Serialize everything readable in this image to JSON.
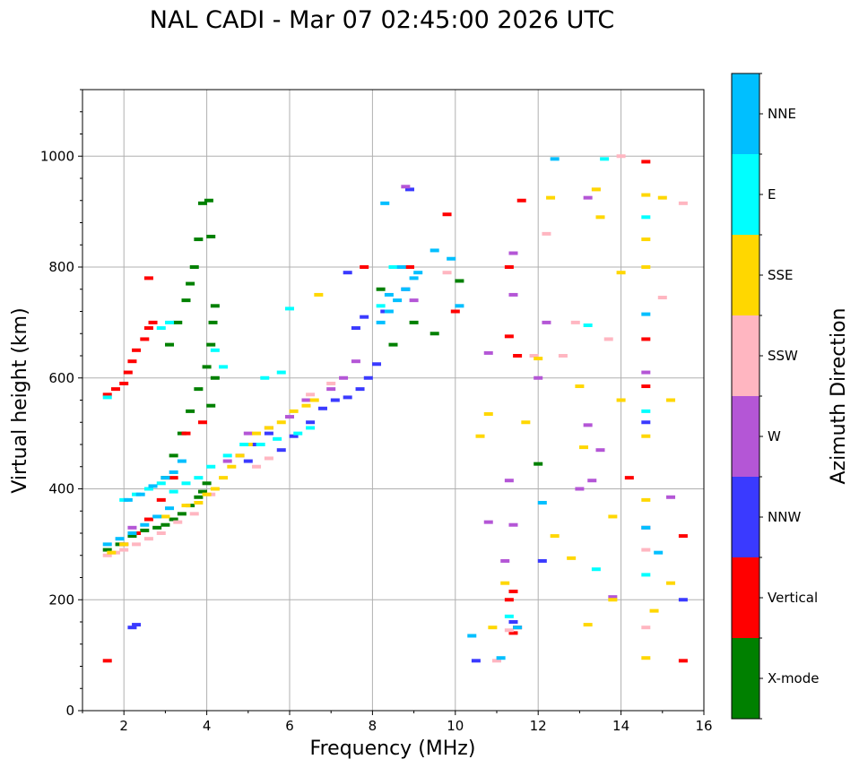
{
  "chart_data": {
    "type": "scatter",
    "title": "NAL CADI - Mar 07 02:45:00 2026 UTC",
    "xlabel": "Frequency (MHz)",
    "ylabel": "Virtual height (km)",
    "xlim": [
      1,
      16
    ],
    "ylim": [
      0,
      1120
    ],
    "x_ticks": [
      2,
      4,
      6,
      8,
      10,
      12,
      14,
      16
    ],
    "y_ticks": [
      0,
      200,
      400,
      600,
      800,
      1000
    ],
    "grid": true,
    "colorbar": {
      "title": "Azimuth Direction",
      "categories": [
        {
          "name": "X-mode",
          "color": "#008000"
        },
        {
          "name": "Vertical",
          "color": "#ff0000"
        },
        {
          "name": "NNW",
          "color": "#3a3aff"
        },
        {
          "name": "W",
          "color": "#b456d6"
        },
        {
          "name": "SSW",
          "color": "#ffb6c1"
        },
        {
          "name": "SSE",
          "color": "#ffd700"
        },
        {
          "name": "E",
          "color": "#00ffff"
        },
        {
          "name": "NNE",
          "color": "#00bfff"
        }
      ]
    },
    "series": [
      {
        "name": "X-mode",
        "points": [
          [
            1.6,
            290
          ],
          [
            1.9,
            300
          ],
          [
            2.2,
            315
          ],
          [
            2.5,
            325
          ],
          [
            2.8,
            330
          ],
          [
            3.0,
            335
          ],
          [
            3.2,
            345
          ],
          [
            3.4,
            355
          ],
          [
            3.6,
            370
          ],
          [
            3.8,
            385
          ],
          [
            3.9,
            395
          ],
          [
            4.0,
            410
          ],
          [
            3.0,
            420
          ],
          [
            3.2,
            460
          ],
          [
            3.4,
            500
          ],
          [
            3.6,
            540
          ],
          [
            3.8,
            580
          ],
          [
            4.0,
            620
          ],
          [
            4.1,
            660
          ],
          [
            4.15,
            700
          ],
          [
            4.2,
            730
          ],
          [
            4.1,
            550
          ],
          [
            4.2,
            600
          ],
          [
            3.1,
            660
          ],
          [
            3.3,
            700
          ],
          [
            3.5,
            740
          ],
          [
            3.6,
            770
          ],
          [
            3.7,
            800
          ],
          [
            3.8,
            850
          ],
          [
            3.9,
            915
          ],
          [
            4.05,
            920
          ],
          [
            4.1,
            855
          ],
          [
            8.5,
            660
          ],
          [
            9.0,
            700
          ],
          [
            9.5,
            680
          ],
          [
            10.1,
            775
          ],
          [
            12.0,
            445
          ],
          [
            8.2,
            760
          ]
        ]
      },
      {
        "name": "Vertical",
        "points": [
          [
            1.6,
            570
          ],
          [
            1.8,
            580
          ],
          [
            2.0,
            590
          ],
          [
            2.1,
            610
          ],
          [
            2.2,
            630
          ],
          [
            2.3,
            650
          ],
          [
            2.5,
            670
          ],
          [
            2.6,
            690
          ],
          [
            2.7,
            700
          ],
          [
            2.6,
            780
          ],
          [
            2.0,
            300
          ],
          [
            2.3,
            320
          ],
          [
            2.6,
            345
          ],
          [
            2.9,
            380
          ],
          [
            3.2,
            420
          ],
          [
            3.5,
            500
          ],
          [
            3.9,
            520
          ],
          [
            1.6,
            90
          ],
          [
            11.4,
            140
          ],
          [
            11.5,
            150
          ],
          [
            11.3,
            200
          ],
          [
            11.4,
            215
          ],
          [
            11.5,
            640
          ],
          [
            11.6,
            920
          ],
          [
            11.3,
            800
          ],
          [
            11.3,
            675
          ],
          [
            9.8,
            895
          ],
          [
            10.0,
            720
          ],
          [
            14.6,
            990
          ],
          [
            14.2,
            420
          ],
          [
            15.5,
            315
          ],
          [
            15.5,
            90
          ],
          [
            14.6,
            585
          ],
          [
            14.6,
            670
          ],
          [
            7.8,
            800
          ],
          [
            8.9,
            800
          ]
        ]
      },
      {
        "name": "NNW",
        "points": [
          [
            2.2,
            150
          ],
          [
            2.3,
            155
          ],
          [
            5.0,
            450
          ],
          [
            5.2,
            480
          ],
          [
            5.5,
            500
          ],
          [
            5.8,
            470
          ],
          [
            6.1,
            495
          ],
          [
            6.5,
            520
          ],
          [
            6.8,
            545
          ],
          [
            7.1,
            560
          ],
          [
            7.4,
            565
          ],
          [
            7.7,
            580
          ],
          [
            7.9,
            600
          ],
          [
            8.1,
            625
          ],
          [
            7.6,
            690
          ],
          [
            7.8,
            710
          ],
          [
            8.3,
            720
          ],
          [
            8.8,
            760
          ],
          [
            8.9,
            940
          ],
          [
            7.4,
            790
          ],
          [
            12.1,
            270
          ],
          [
            14.6,
            330
          ],
          [
            10.5,
            90
          ],
          [
            11.4,
            160
          ],
          [
            14.6,
            520
          ],
          [
            15.5,
            200
          ]
        ]
      },
      {
        "name": "W",
        "points": [
          [
            2.2,
            330
          ],
          [
            4.5,
            450
          ],
          [
            4.8,
            460
          ],
          [
            5.0,
            500
          ],
          [
            5.5,
            510
          ],
          [
            6.0,
            530
          ],
          [
            6.4,
            560
          ],
          [
            7.0,
            580
          ],
          [
            7.3,
            600
          ],
          [
            7.6,
            630
          ],
          [
            8.8,
            945
          ],
          [
            10.8,
            340
          ],
          [
            11.2,
            270
          ],
          [
            11.4,
            335
          ],
          [
            11.3,
            415
          ],
          [
            11.4,
            825
          ],
          [
            11.4,
            750
          ],
          [
            12.2,
            700
          ],
          [
            13.2,
            925
          ],
          [
            13.0,
            400
          ],
          [
            13.3,
            415
          ],
          [
            13.8,
            205
          ],
          [
            14.6,
            610
          ],
          [
            15.2,
            385
          ],
          [
            10.8,
            645
          ],
          [
            9.0,
            740
          ],
          [
            12.0,
            600
          ],
          [
            13.2,
            515
          ],
          [
            13.5,
            470
          ]
        ]
      },
      {
        "name": "SSW",
        "points": [
          [
            1.6,
            280
          ],
          [
            1.8,
            285
          ],
          [
            2.0,
            290
          ],
          [
            2.3,
            300
          ],
          [
            2.6,
            310
          ],
          [
            2.9,
            320
          ],
          [
            3.3,
            340
          ],
          [
            3.7,
            355
          ],
          [
            4.1,
            390
          ],
          [
            5.2,
            440
          ],
          [
            5.5,
            455
          ],
          [
            6.5,
            570
          ],
          [
            7.0,
            590
          ],
          [
            9.8,
            790
          ],
          [
            11.0,
            90
          ],
          [
            11.3,
            145
          ],
          [
            11.9,
            640
          ],
          [
            12.6,
            640
          ],
          [
            12.2,
            860
          ],
          [
            13.4,
            940
          ],
          [
            14.0,
            1000
          ],
          [
            14.6,
            150
          ],
          [
            14.6,
            290
          ],
          [
            14.6,
            330
          ],
          [
            15.0,
            745
          ],
          [
            15.5,
            915
          ],
          [
            12.9,
            700
          ],
          [
            13.7,
            670
          ]
        ]
      },
      {
        "name": "SSE",
        "points": [
          [
            1.7,
            285
          ],
          [
            2.0,
            300
          ],
          [
            3.0,
            350
          ],
          [
            3.5,
            370
          ],
          [
            3.8,
            375
          ],
          [
            4.0,
            390
          ],
          [
            4.2,
            400
          ],
          [
            4.4,
            420
          ],
          [
            4.6,
            440
          ],
          [
            4.8,
            460
          ],
          [
            5.0,
            480
          ],
          [
            5.2,
            500
          ],
          [
            5.5,
            510
          ],
          [
            5.8,
            520
          ],
          [
            6.1,
            540
          ],
          [
            6.4,
            550
          ],
          [
            6.6,
            560
          ],
          [
            6.7,
            750
          ],
          [
            10.6,
            495
          ],
          [
            10.8,
            535
          ],
          [
            10.9,
            150
          ],
          [
            11.2,
            230
          ],
          [
            11.7,
            520
          ],
          [
            12.0,
            635
          ],
          [
            12.4,
            315
          ],
          [
            12.3,
            925
          ],
          [
            12.8,
            275
          ],
          [
            13.0,
            585
          ],
          [
            13.2,
            155
          ],
          [
            13.4,
            940
          ],
          [
            13.5,
            890
          ],
          [
            13.8,
            200
          ],
          [
            13.8,
            350
          ],
          [
            14.0,
            560
          ],
          [
            14.0,
            790
          ],
          [
            14.6,
            95
          ],
          [
            14.6,
            800
          ],
          [
            14.6,
            850
          ],
          [
            14.6,
            930
          ],
          [
            14.8,
            180
          ],
          [
            15.0,
            925
          ],
          [
            15.2,
            560
          ],
          [
            15.2,
            230
          ],
          [
            14.6,
            380
          ],
          [
            14.6,
            495
          ],
          [
            13.1,
            475
          ]
        ]
      },
      {
        "name": "E",
        "points": [
          [
            2.0,
            380
          ],
          [
            2.3,
            390
          ],
          [
            2.6,
            400
          ],
          [
            2.9,
            410
          ],
          [
            3.2,
            395
          ],
          [
            3.5,
            410
          ],
          [
            3.8,
            420
          ],
          [
            4.1,
            440
          ],
          [
            4.5,
            460
          ],
          [
            4.9,
            480
          ],
          [
            5.3,
            480
          ],
          [
            5.7,
            490
          ],
          [
            6.2,
            500
          ],
          [
            6.5,
            510
          ],
          [
            4.2,
            650
          ],
          [
            4.4,
            620
          ],
          [
            5.4,
            600
          ],
          [
            5.8,
            610
          ],
          [
            6.0,
            725
          ],
          [
            1.6,
            565
          ],
          [
            2.9,
            690
          ],
          [
            3.1,
            700
          ],
          [
            8.2,
            730
          ],
          [
            8.5,
            800
          ],
          [
            11.3,
            170
          ],
          [
            13.2,
            695
          ],
          [
            13.6,
            995
          ],
          [
            14.6,
            890
          ],
          [
            14.6,
            245
          ],
          [
            14.6,
            540
          ],
          [
            13.4,
            255
          ]
        ]
      },
      {
        "name": "NNE",
        "points": [
          [
            1.6,
            300
          ],
          [
            1.9,
            310
          ],
          [
            2.2,
            320
          ],
          [
            2.5,
            335
          ],
          [
            2.8,
            350
          ],
          [
            3.1,
            365
          ],
          [
            2.1,
            380
          ],
          [
            2.4,
            390
          ],
          [
            2.7,
            405
          ],
          [
            3.0,
            420
          ],
          [
            3.2,
            430
          ],
          [
            3.4,
            450
          ],
          [
            8.2,
            700
          ],
          [
            8.4,
            720
          ],
          [
            8.6,
            740
          ],
          [
            8.8,
            760
          ],
          [
            9.0,
            780
          ],
          [
            8.4,
            750
          ],
          [
            8.7,
            800
          ],
          [
            9.1,
            790
          ],
          [
            9.5,
            830
          ],
          [
            9.9,
            815
          ],
          [
            10.1,
            730
          ],
          [
            8.3,
            915
          ],
          [
            11.1,
            95
          ],
          [
            11.5,
            150
          ],
          [
            12.1,
            375
          ],
          [
            12.4,
            995
          ],
          [
            14.6,
            715
          ],
          [
            14.6,
            330
          ],
          [
            14.9,
            285
          ],
          [
            10.4,
            135
          ]
        ]
      }
    ]
  }
}
